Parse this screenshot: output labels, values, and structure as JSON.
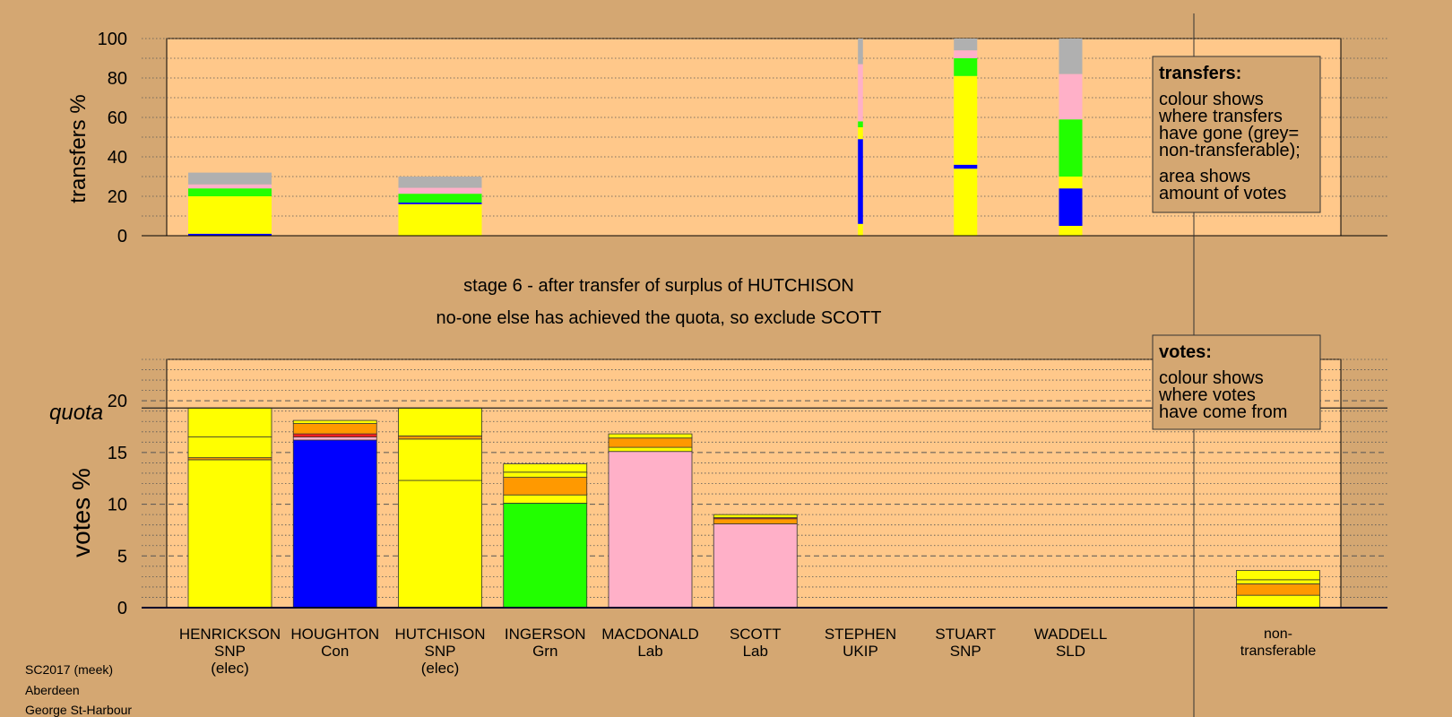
{
  "chart_data": {
    "type": "bar",
    "stage_text": "stage 6 - after transfer of surplus of HUTCHISON",
    "action_text": "no-one else has achieved the quota, so exclude SCOTT",
    "footer": [
      "SC2017 (meek)",
      "Aberdeen",
      "George St-Harbour"
    ],
    "colors": {
      "snp": "#ffff00",
      "con": "#0000ff",
      "grn": "#22ff00",
      "lab": "#ffb0c8",
      "orange": "#ff9900",
      "red": "#ff2020",
      "nontrans": "#b0b0b0",
      "plot_bg": "#ffc88a",
      "page_bg": "#d4a772",
      "legend_bg": "#d4a772"
    },
    "candidates": [
      {
        "name": "HENRICKSON",
        "party": "SNP",
        "status": "(elec)"
      },
      {
        "name": "HOUGHTON",
        "party": "Con",
        "status": ""
      },
      {
        "name": "HUTCHISON",
        "party": "SNP",
        "status": "(elec)"
      },
      {
        "name": "INGERSON",
        "party": "Grn",
        "status": ""
      },
      {
        "name": "MACDONALD",
        "party": "Lab",
        "status": ""
      },
      {
        "name": "SCOTT",
        "party": "Lab",
        "status": ""
      },
      {
        "name": "STEPHEN",
        "party": "UKIP",
        "status": ""
      },
      {
        "name": "STUART",
        "party": "SNP",
        "status": ""
      },
      {
        "name": "WADDELL",
        "party": "SLD",
        "status": ""
      }
    ],
    "nontransferable_label": [
      "non-",
      "transferable"
    ],
    "transfers": {
      "ylabel": "transfers %",
      "ylim": [
        0,
        100
      ],
      "yticks": [
        0,
        20,
        40,
        60,
        80,
        100
      ],
      "legend": {
        "title": "transfers:",
        "lines": [
          "colour shows",
          "where transfers",
          "have gone (grey=",
          "non-transferable);",
          "area shows",
          "amount of votes"
        ]
      },
      "bars": [
        {
          "index": 0,
          "width": 1.0,
          "segments": [
            {
              "color": "con",
              "value": 1
            },
            {
              "color": "snp",
              "value": 19
            },
            {
              "color": "grn",
              "value": 4
            },
            {
              "color": "lab",
              "value": 2
            },
            {
              "color": "nontrans",
              "value": 6
            }
          ]
        },
        {
          "index": 2,
          "width": 1.0,
          "segments": [
            {
              "color": "snp",
              "value": 16
            },
            {
              "color": "con",
              "value": 0.8
            },
            {
              "color": "grn",
              "value": 4.5
            },
            {
              "color": "lab",
              "value": 3
            },
            {
              "color": "nontrans",
              "value": 5.7
            }
          ]
        },
        {
          "index": 6,
          "width": 0.06,
          "segments": [
            {
              "color": "snp",
              "value": 6
            },
            {
              "color": "con",
              "value": 43
            },
            {
              "color": "snp",
              "value": 6
            },
            {
              "color": "grn",
              "value": 3
            },
            {
              "color": "lab",
              "value": 29
            },
            {
              "color": "nontrans",
              "value": 13
            }
          ]
        },
        {
          "index": 7,
          "width": 0.28,
          "segments": [
            {
              "color": "snp",
              "value": 34
            },
            {
              "color": "con",
              "value": 2
            },
            {
              "color": "snp",
              "value": 45
            },
            {
              "color": "grn",
              "value": 9
            },
            {
              "color": "lab",
              "value": 4
            },
            {
              "color": "nontrans",
              "value": 6
            }
          ]
        },
        {
          "index": 8,
          "width": 0.28,
          "segments": [
            {
              "color": "snp",
              "value": 5
            },
            {
              "color": "con",
              "value": 19
            },
            {
              "color": "snp",
              "value": 6
            },
            {
              "color": "grn",
              "value": 29
            },
            {
              "color": "lab",
              "value": 23
            },
            {
              "color": "nontrans",
              "value": 18
            }
          ]
        }
      ]
    },
    "votes": {
      "ylabel": "votes %",
      "ylim": [
        0,
        24
      ],
      "yticks": [
        0,
        5,
        10,
        15,
        20
      ],
      "quota": 19.3,
      "quota_label": "quota",
      "legend": {
        "title": "votes:",
        "lines": [
          "colour shows",
          "where votes",
          "have come from"
        ]
      },
      "bars": [
        {
          "index": 0,
          "segments": [
            {
              "color": "snp",
              "value": 14.3
            },
            {
              "color": "orange",
              "value": 0.2
            },
            {
              "color": "snp",
              "value": 2.0
            },
            {
              "color": "snp",
              "value": 2.8
            }
          ]
        },
        {
          "index": 1,
          "segments": [
            {
              "color": "con",
              "value": 16.2
            },
            {
              "color": "lab",
              "value": 0.3
            },
            {
              "color": "red",
              "value": 0.3
            },
            {
              "color": "orange",
              "value": 1.0
            },
            {
              "color": "snp",
              "value": 0.3
            }
          ]
        },
        {
          "index": 2,
          "segments": [
            {
              "color": "snp",
              "value": 12.3
            },
            {
              "color": "snp",
              "value": 4.0
            },
            {
              "color": "orange",
              "value": 0.3
            },
            {
              "color": "snp",
              "value": 2.7
            }
          ]
        },
        {
          "index": 3,
          "segments": [
            {
              "color": "grn",
              "value": 10.1
            },
            {
              "color": "snp",
              "value": 0.8
            },
            {
              "color": "orange",
              "value": 1.7
            },
            {
              "color": "snp",
              "value": 0.5
            },
            {
              "color": "snp",
              "value": 0.8
            }
          ]
        },
        {
          "index": 4,
          "segments": [
            {
              "color": "lab",
              "value": 15.1
            },
            {
              "color": "snp",
              "value": 0.4
            },
            {
              "color": "orange",
              "value": 0.9
            },
            {
              "color": "snp",
              "value": 0.4
            }
          ]
        },
        {
          "index": 5,
          "segments": [
            {
              "color": "lab",
              "value": 8.1
            },
            {
              "color": "orange",
              "value": 0.5
            },
            {
              "color": "red",
              "value": 0.1
            },
            {
              "color": "snp",
              "value": 0.3
            }
          ]
        },
        {
          "index": 9,
          "segments": [
            {
              "color": "snp",
              "value": 1.2
            },
            {
              "color": "orange",
              "value": 1.1
            },
            {
              "color": "snp",
              "value": 0.4
            },
            {
              "color": "snp",
              "value": 0.9
            }
          ]
        }
      ]
    }
  }
}
